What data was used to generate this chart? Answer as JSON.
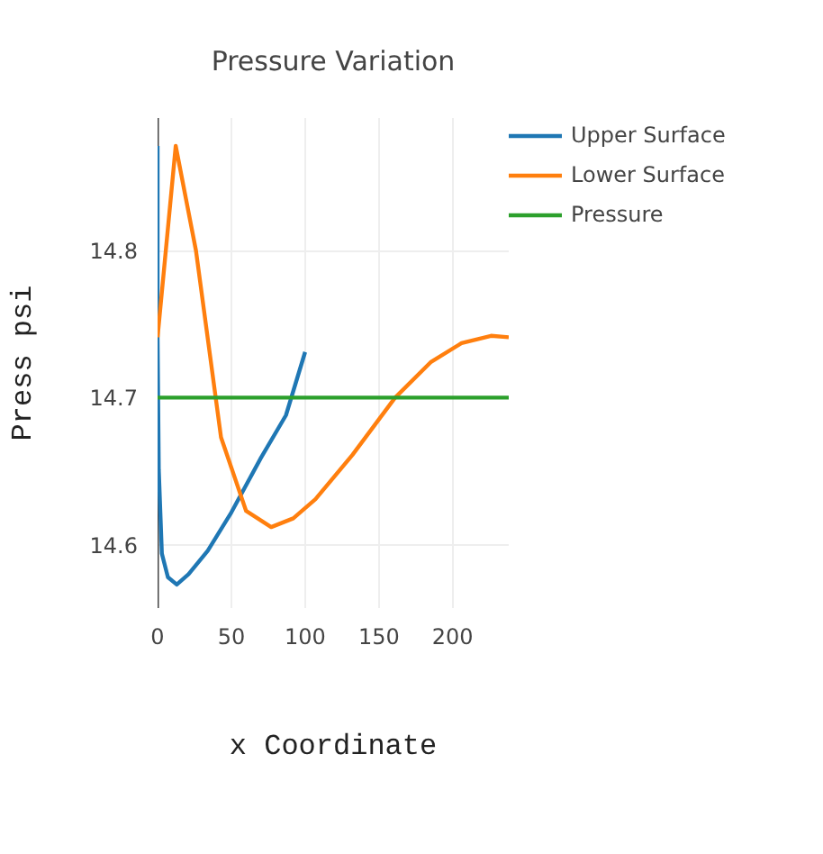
{
  "chart_data": {
    "type": "line",
    "title": "Pressure Variation",
    "xlabel": "x Coordinate",
    "ylabel": "Press psi",
    "xlim": [
      0,
      238
    ],
    "ylim": [
      14.557,
      14.89
    ],
    "xticks": [
      0,
      50,
      100,
      150,
      200
    ],
    "yticks": [
      14.6,
      14.7,
      14.8
    ],
    "grid": true,
    "legend": "top right",
    "marker": "none",
    "line_style": "solid",
    "series": [
      {
        "name": "Upper Surface",
        "color": "#1f77b4",
        "x": [
          0,
          0,
          0.8,
          2.9,
          7,
          13,
          21,
          34,
          50,
          70,
          87,
          100
        ],
        "values": [
          14.871,
          14.741,
          14.651,
          14.594,
          14.578,
          14.573,
          14.58,
          14.596,
          14.622,
          14.659,
          14.688,
          14.731
        ]
      },
      {
        "name": "Lower Surface",
        "color": "#ff7f0e",
        "x": [
          0,
          12.3,
          26,
          43,
          60,
          77,
          92,
          107,
          132,
          161,
          185,
          206,
          226,
          238
        ],
        "values": [
          14.741,
          14.871,
          14.8,
          14.673,
          14.623,
          14.612,
          14.618,
          14.631,
          14.661,
          14.7,
          14.724,
          14.737,
          14.742,
          14.741
        ]
      },
      {
        "name": "Pressure",
        "color": "#2ca02c",
        "x": [
          0,
          238
        ],
        "values": [
          14.7,
          14.7
        ]
      }
    ]
  }
}
